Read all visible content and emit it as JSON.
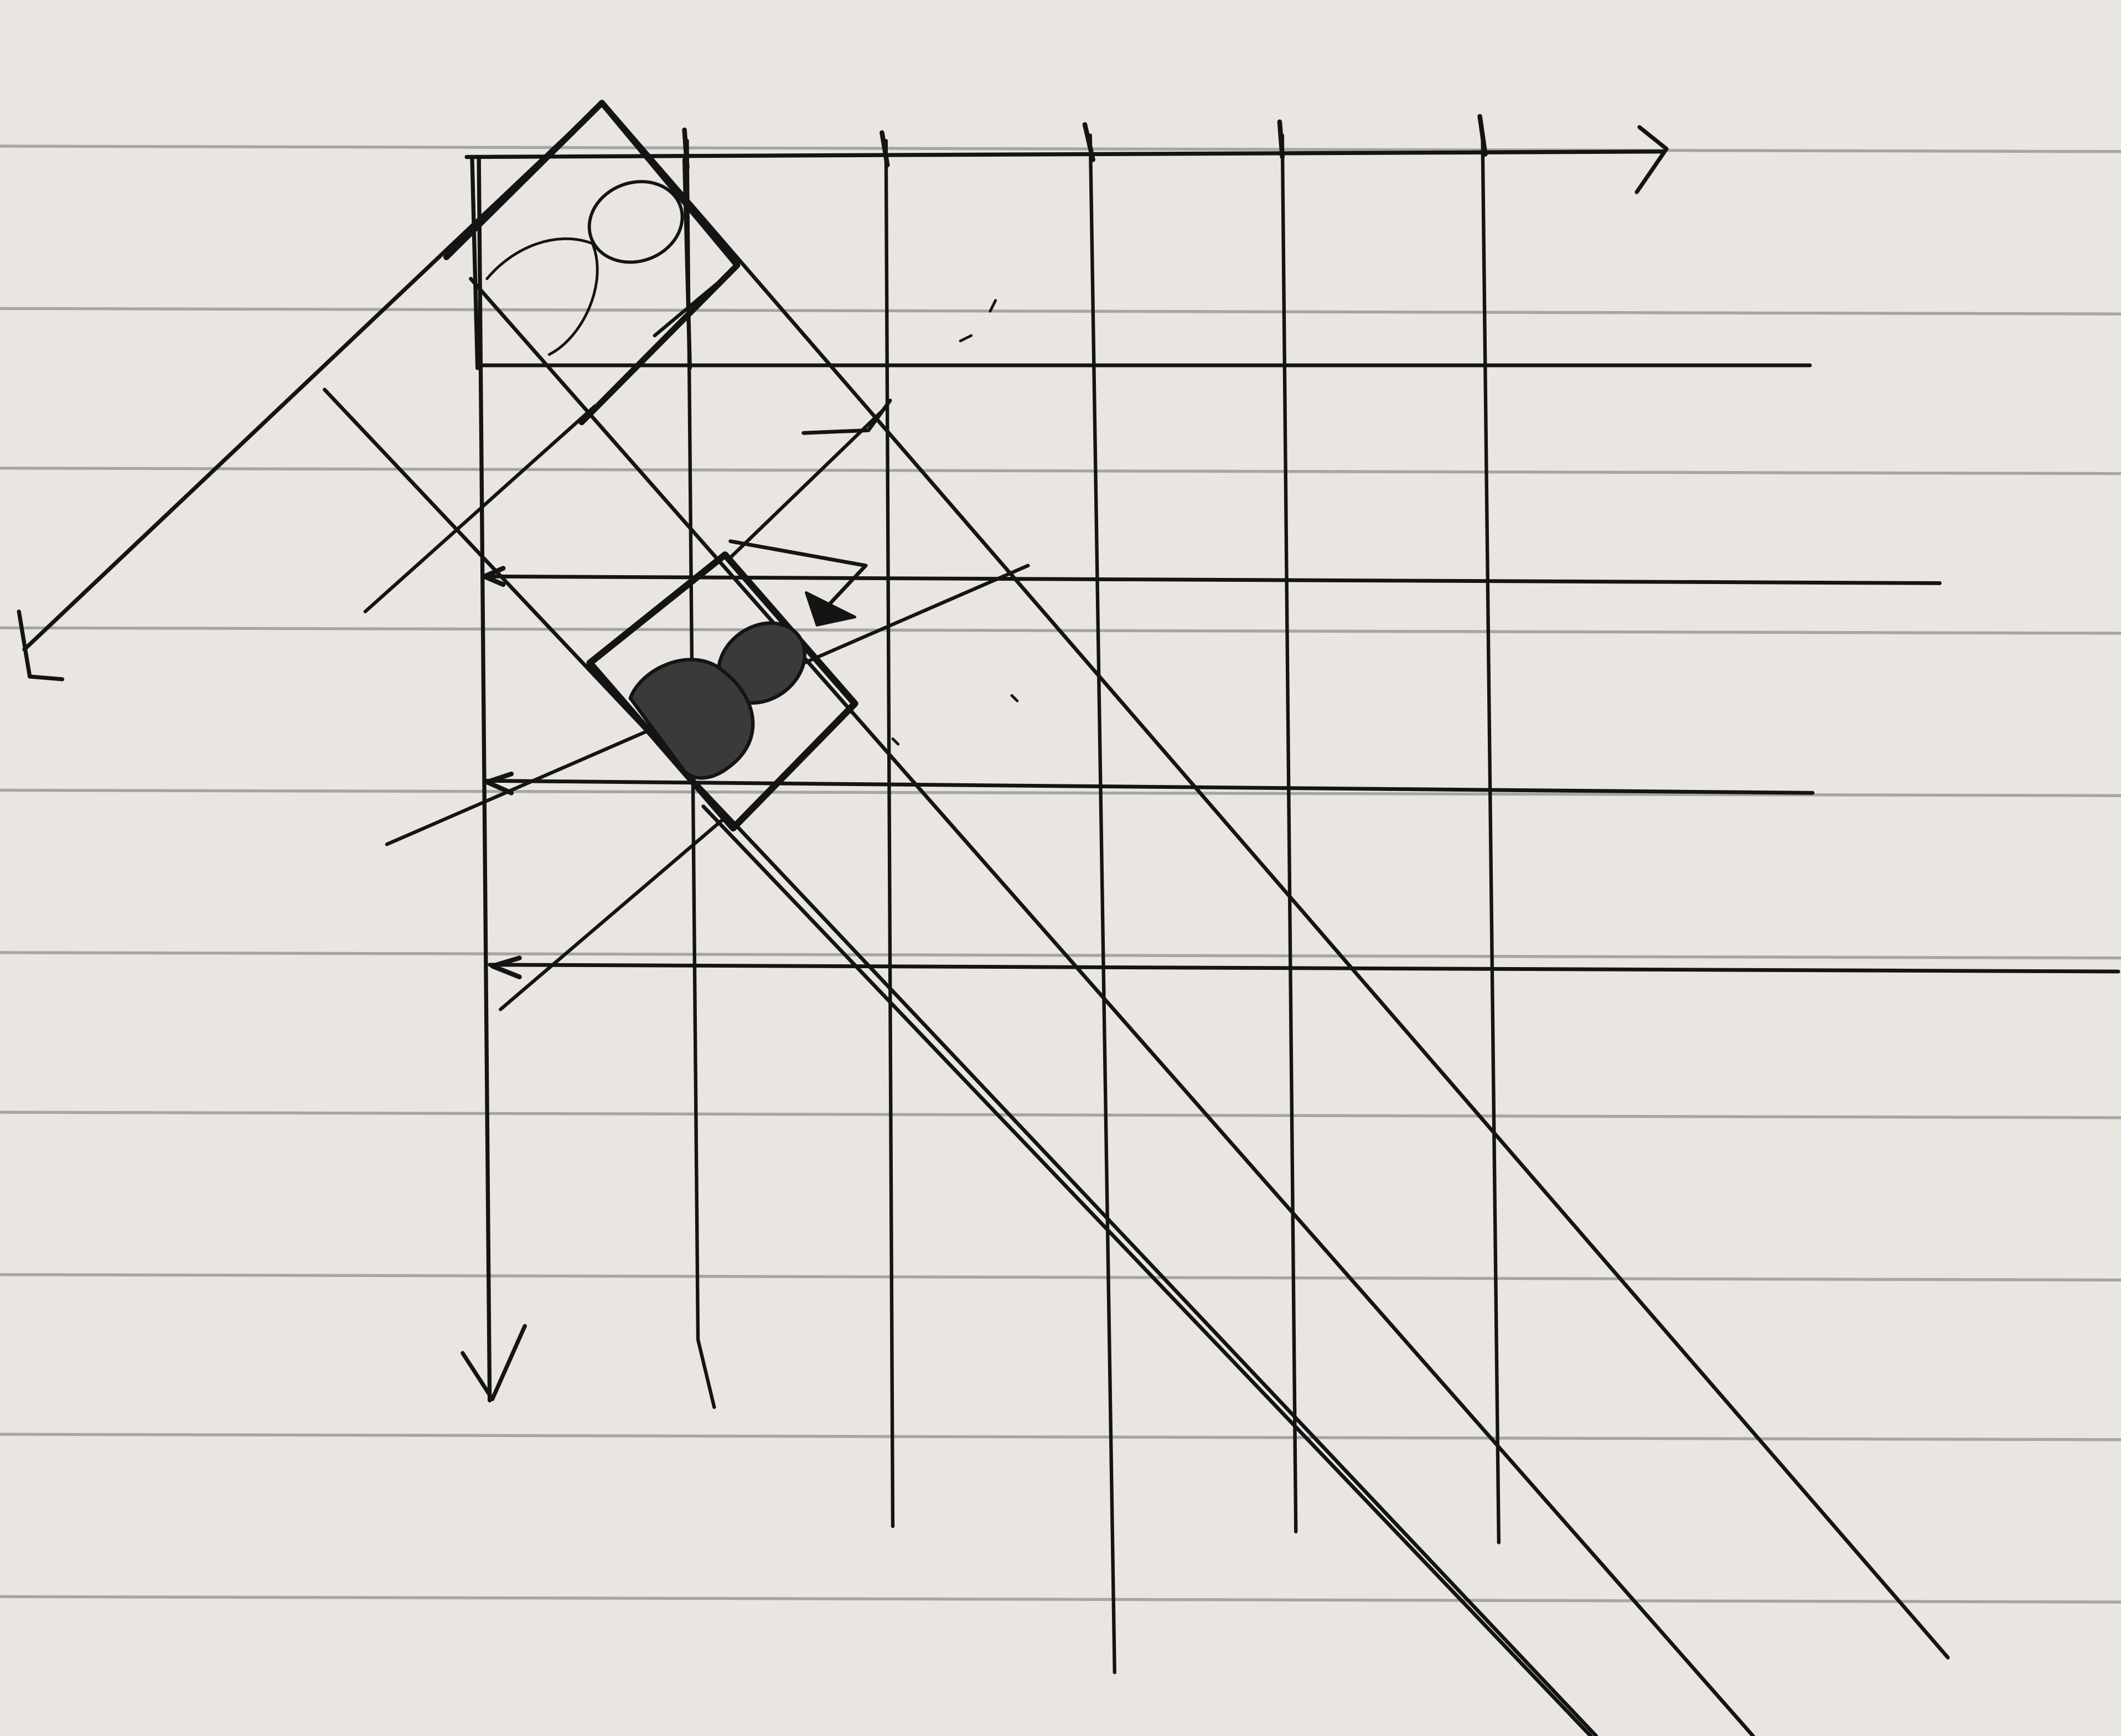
{
  "paper": {
    "background_color": "#e9e6e1",
    "rule_color": "#9a9a9a",
    "ink_color": "#141414"
  },
  "diagram": {
    "description_free": true,
    "labels": []
  }
}
